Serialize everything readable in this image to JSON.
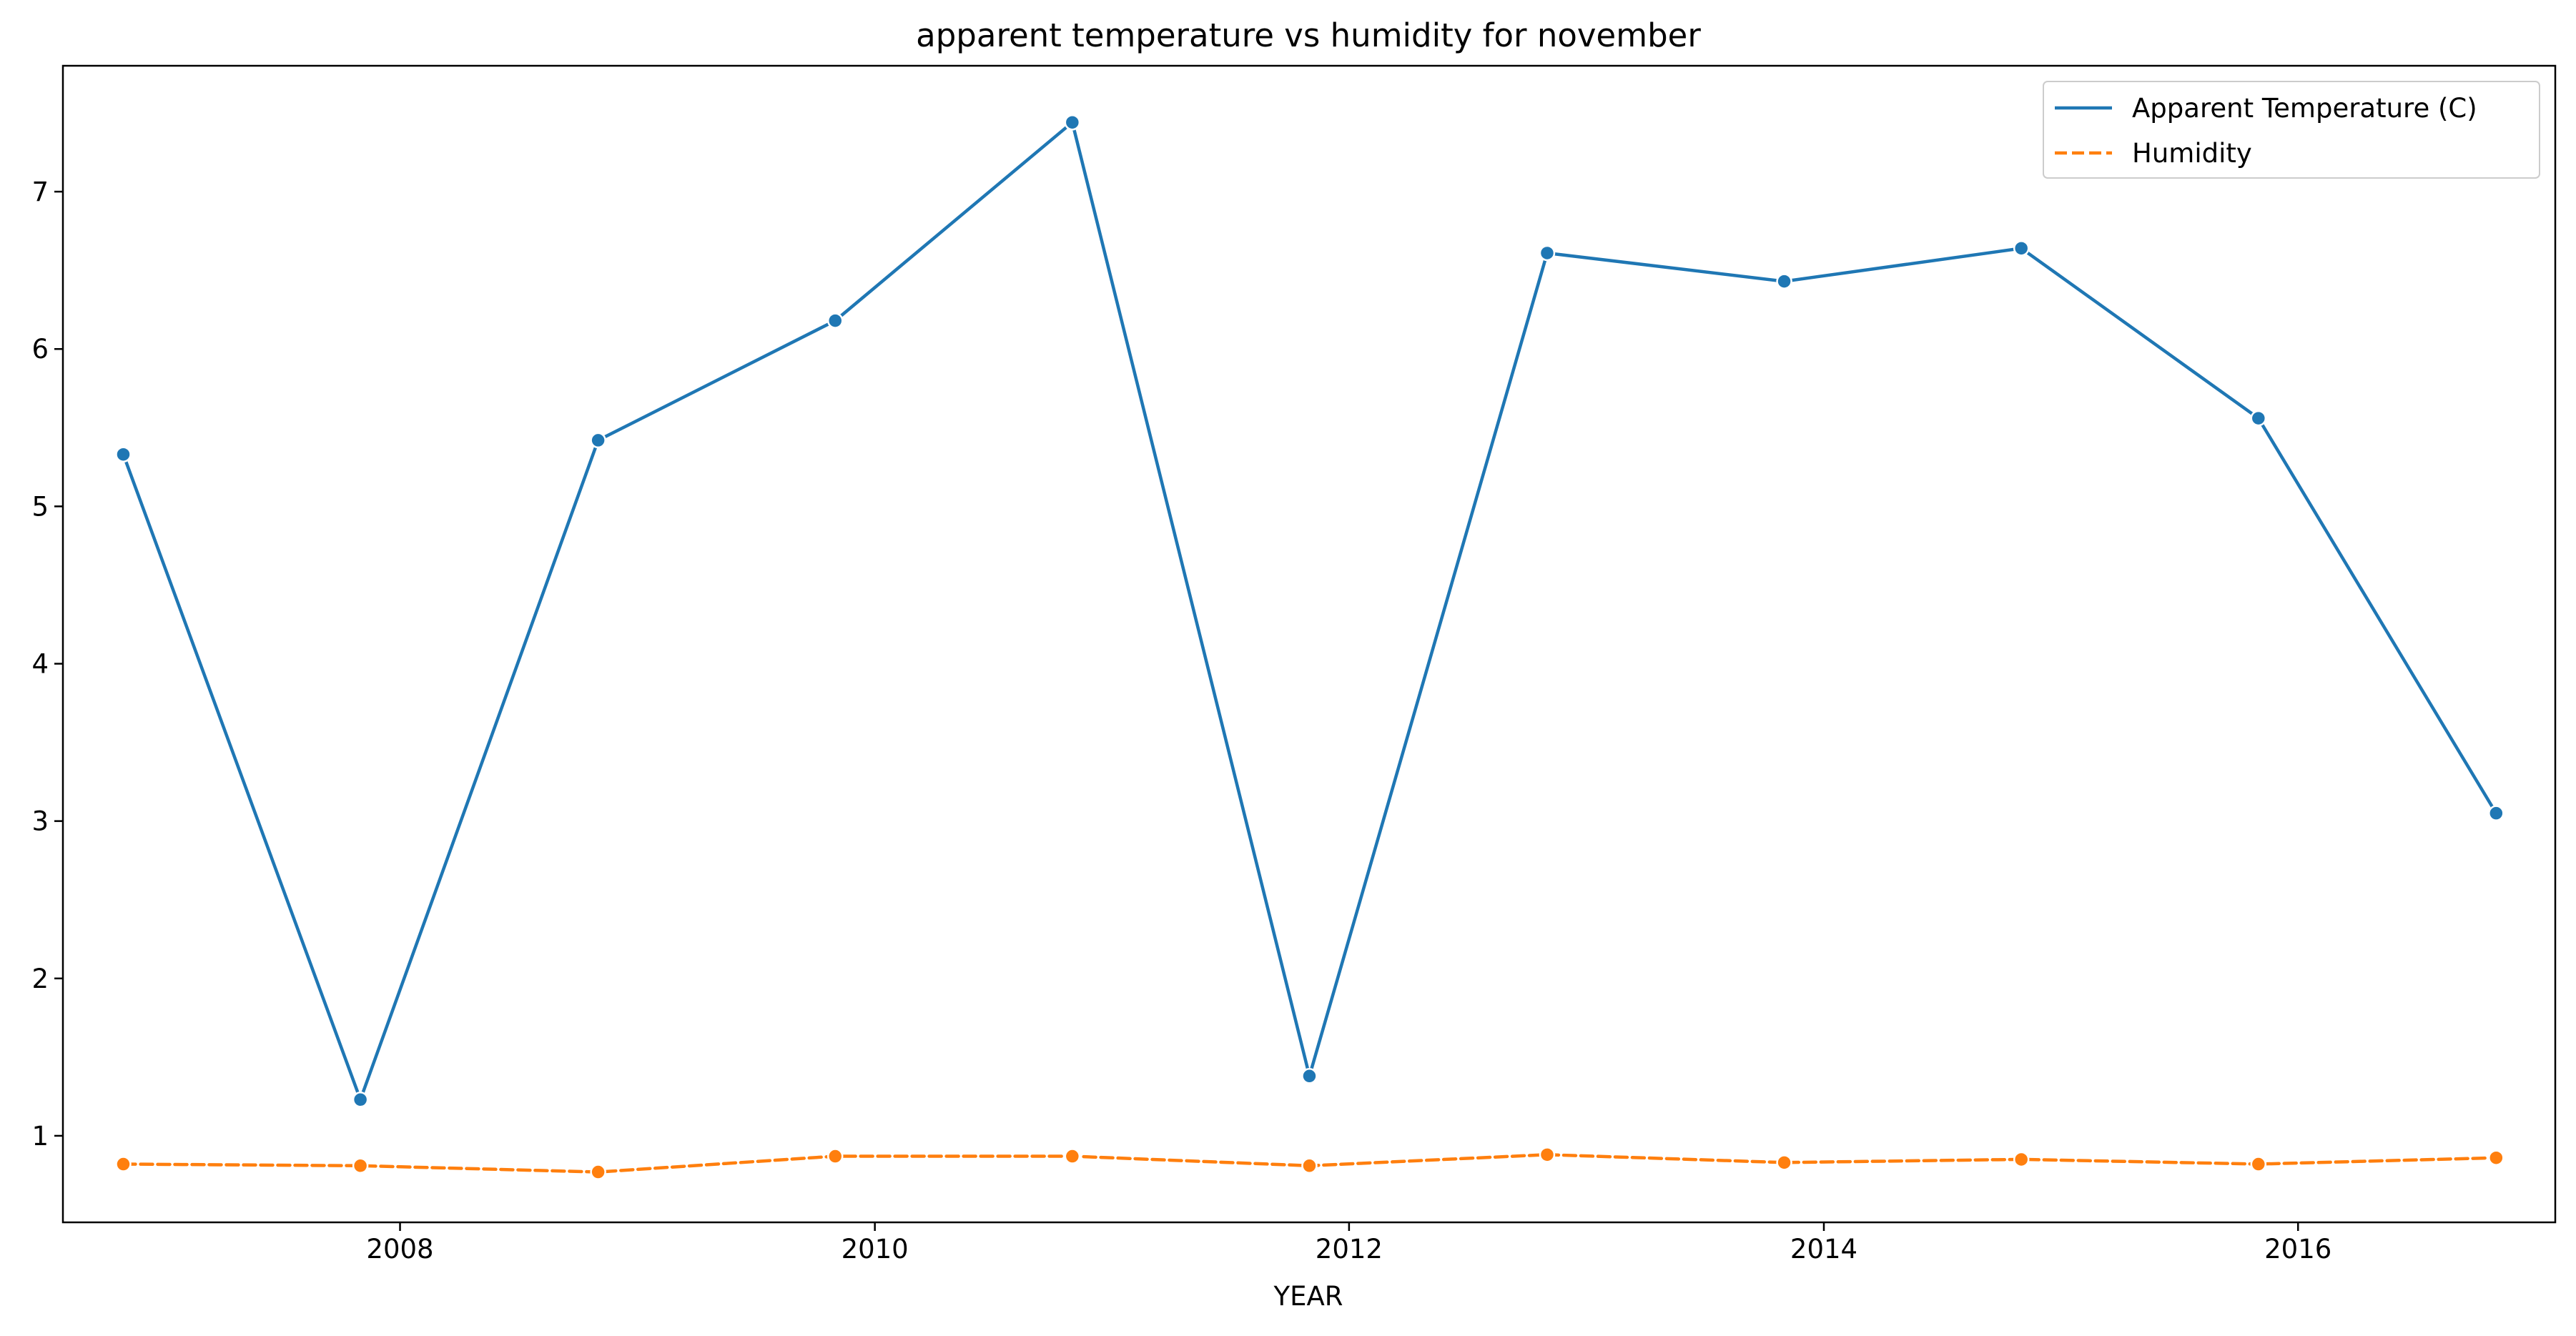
{
  "chart_data": {
    "type": "line",
    "title": "apparent temperature vs humidity for november",
    "xlabel": "YEAR",
    "ylabel": "",
    "x": [
      "2006-11-01",
      "2007-11-01",
      "2008-11-01",
      "2009-11-01",
      "2010-11-01",
      "2011-11-01",
      "2012-11-01",
      "2013-11-01",
      "2014-11-01",
      "2015-11-01",
      "2016-11-01"
    ],
    "series": [
      {
        "name": "Apparent Temperature (C)",
        "values": [
          5.33,
          1.23,
          5.42,
          6.18,
          7.44,
          1.38,
          6.61,
          6.43,
          6.64,
          5.56,
          3.05
        ],
        "color": "#1f77b4",
        "line_style": "solid",
        "marker": "circle"
      },
      {
        "name": "Humidity",
        "values": [
          0.82,
          0.81,
          0.77,
          0.87,
          0.87,
          0.81,
          0.88,
          0.83,
          0.85,
          0.82,
          0.86
        ],
        "color": "#ff7f0e",
        "line_style": "dashed",
        "marker": "circle"
      }
    ],
    "x_ticks": [
      "2008",
      "2010",
      "2012",
      "2014",
      "2016"
    ],
    "y_ticks": [
      1,
      2,
      3,
      4,
      5,
      6,
      7
    ],
    "xlim": [
      "2006-07-31",
      "2017-01-31"
    ],
    "ylim": [
      0.45,
      7.8
    ],
    "grid": false,
    "legend_position": "upper right"
  }
}
